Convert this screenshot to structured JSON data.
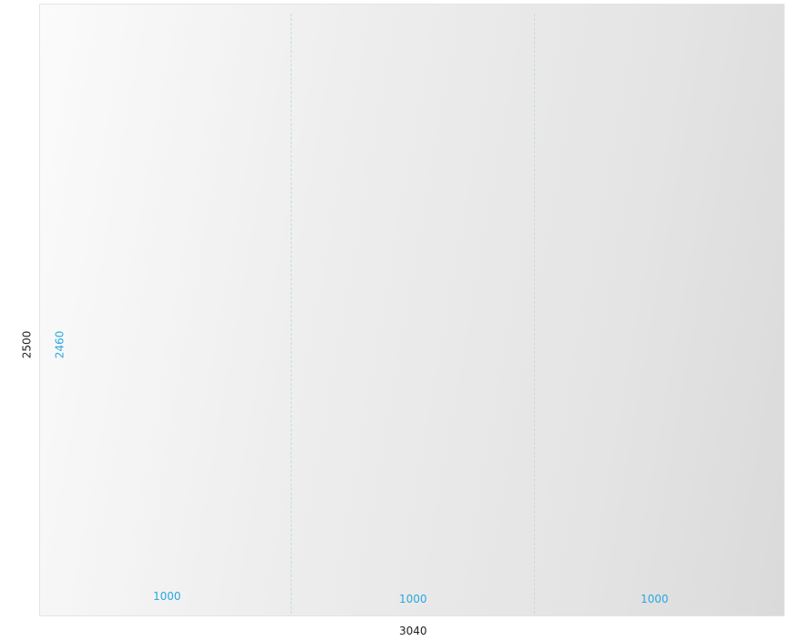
{
  "overall": {
    "height_label": "2500",
    "width_label": "3040"
  },
  "inner_height_label": "2460",
  "panels": [
    {
      "width_label": "1000"
    },
    {
      "width_label": "1000"
    },
    {
      "width_label": "1000"
    }
  ],
  "colors": {
    "dimension_accent": "#29a8e0",
    "dimension_text": "#222222",
    "divider": "#c6dbe8"
  }
}
